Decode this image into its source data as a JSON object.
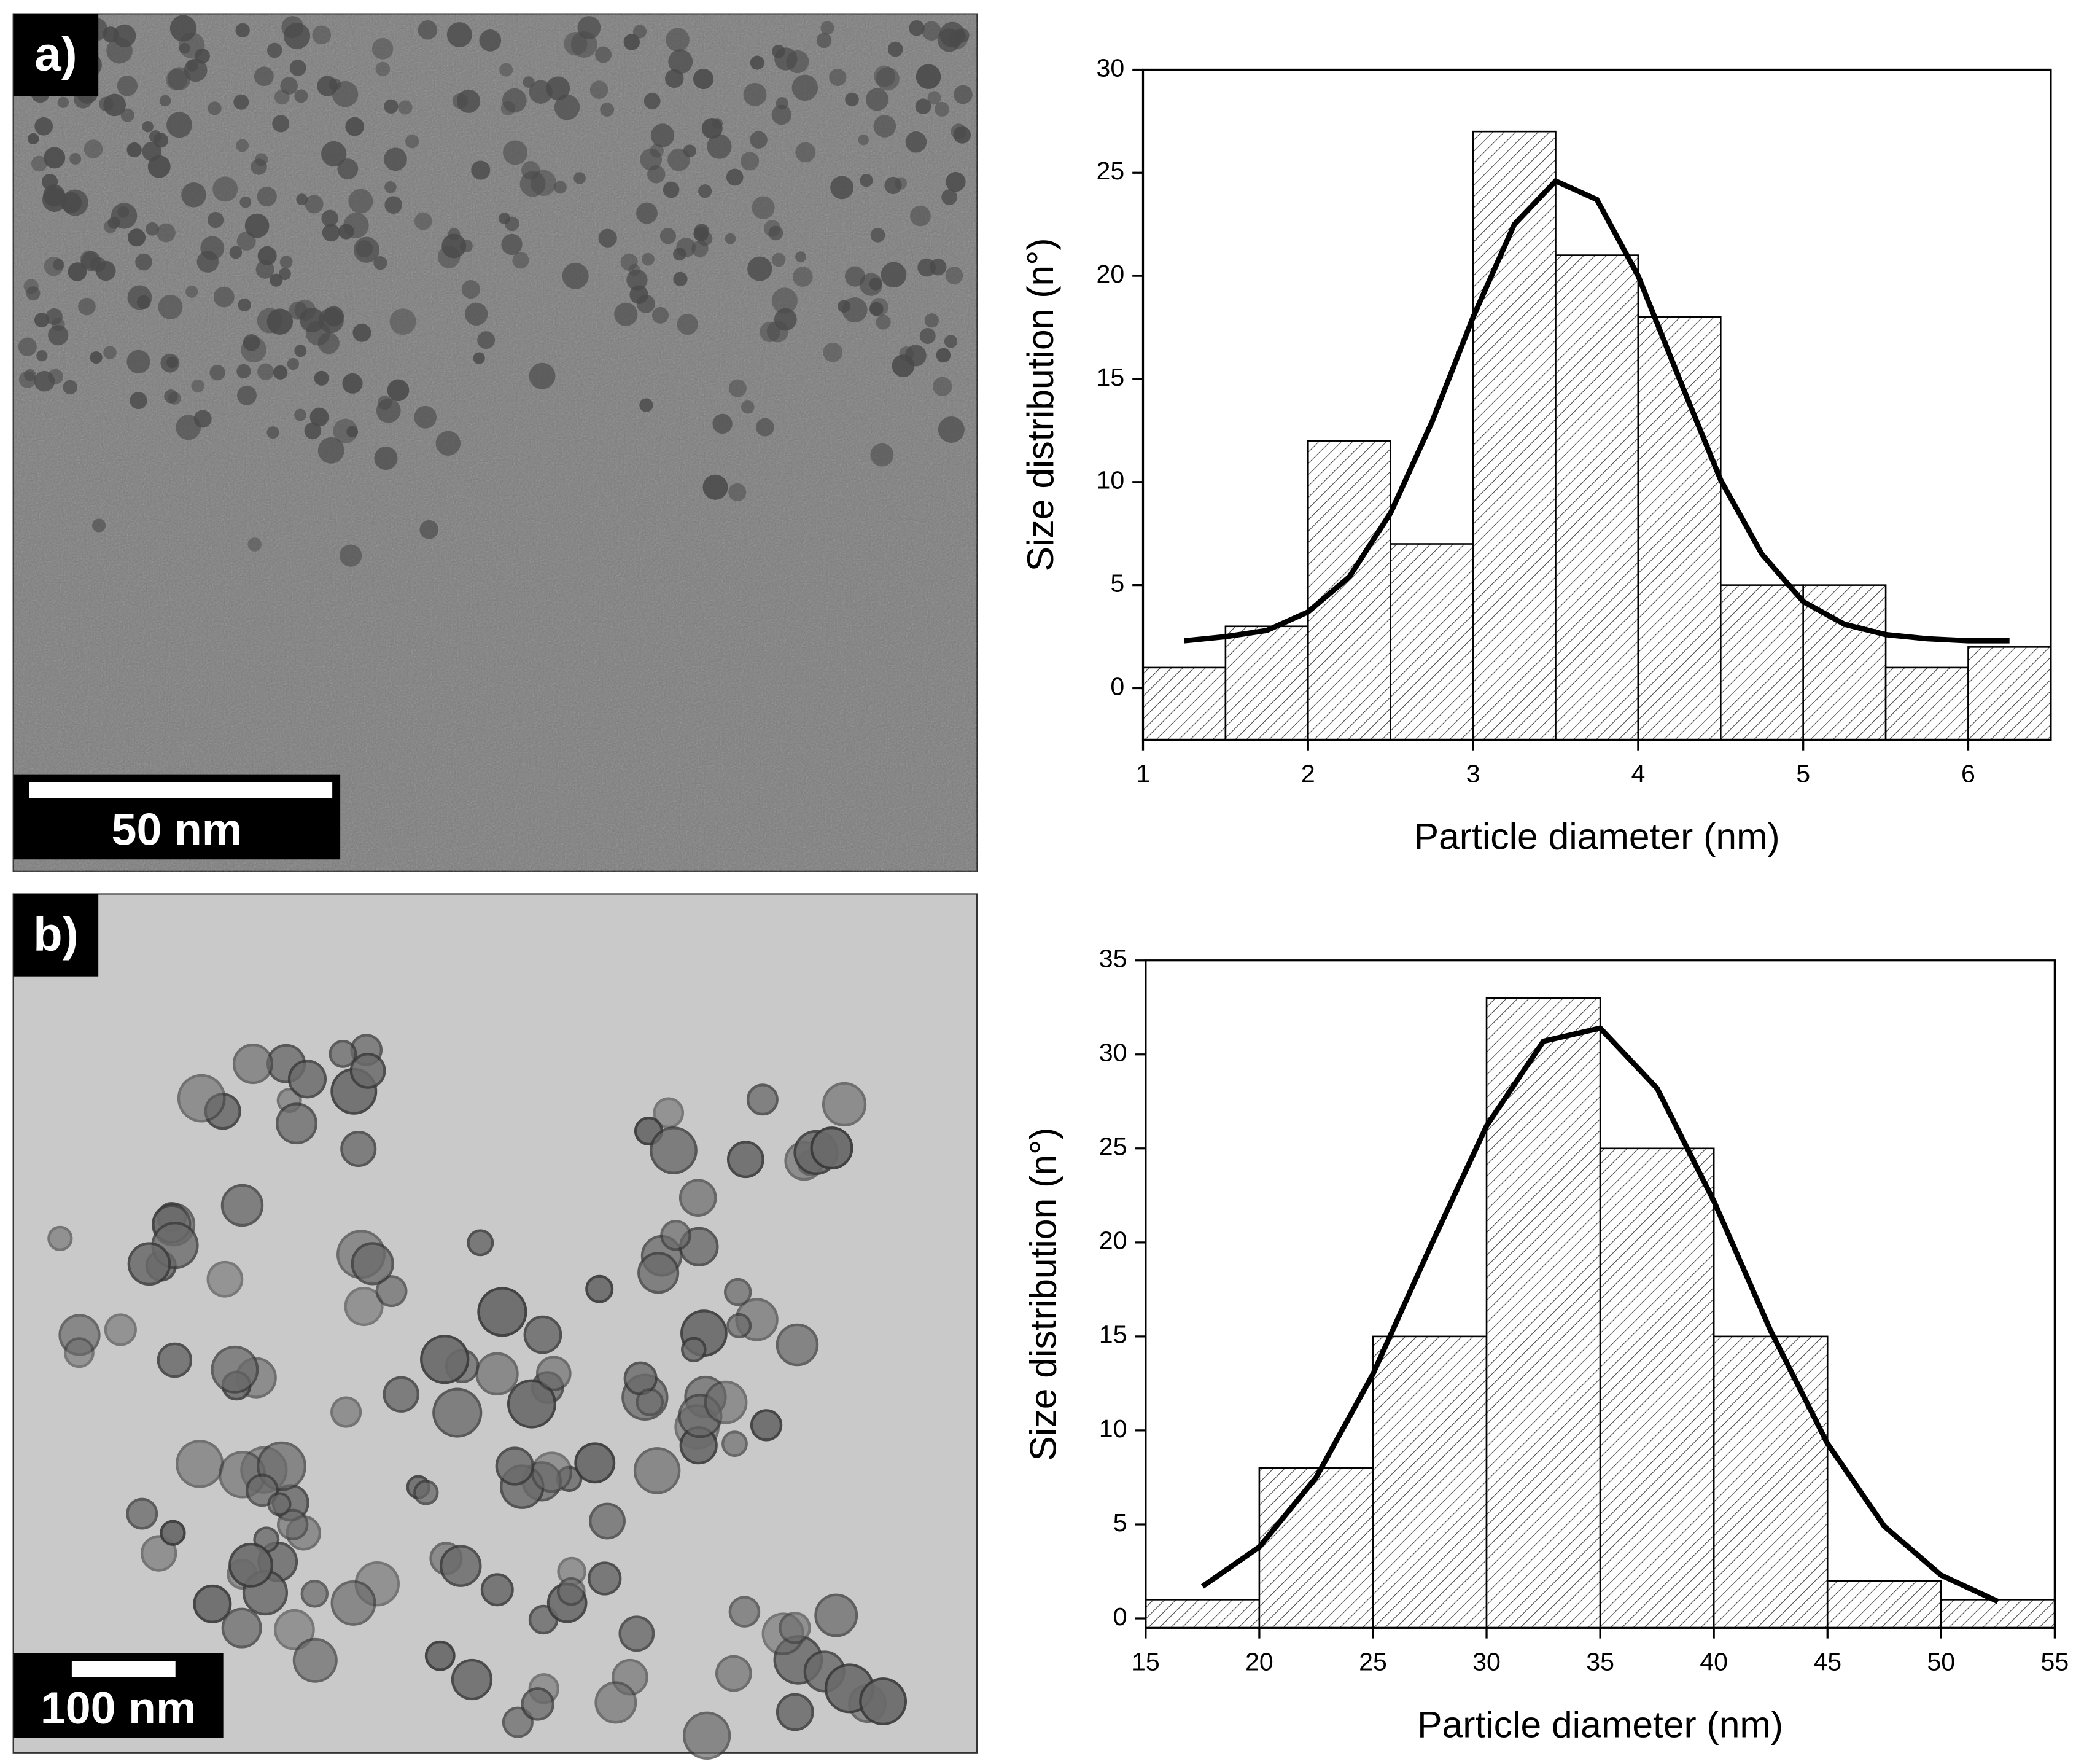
{
  "panels": [
    {
      "label": "a)",
      "scale_bar": "50 nm"
    },
    {
      "label": "b)",
      "scale_bar": "100 nm"
    }
  ],
  "chart_data": [
    {
      "type": "histogram",
      "xlabel": "Particle diameter (nm)",
      "ylabel": "Size distribution (n°)",
      "bins": [
        1,
        1.5,
        2,
        2.5,
        3,
        3.5,
        4,
        4.5,
        5,
        5.5,
        6,
        6.5
      ],
      "counts": [
        1,
        3,
        12,
        7,
        27,
        21,
        18,
        5,
        5,
        1,
        2
      ],
      "fit": {
        "x": [
          1.25,
          1.5,
          1.75,
          2,
          2.25,
          2.5,
          2.75,
          3,
          3.25,
          3.5,
          3.75,
          4,
          4.25,
          4.5,
          4.75,
          5,
          5.25,
          5.5,
          5.75,
          6,
          6.25
        ],
        "values": [
          2.3,
          2.5,
          2.8,
          3.7,
          5.4,
          8.5,
          12.9,
          18.0,
          22.5,
          24.6,
          23.7,
          20.0,
          15.0,
          10.1,
          6.5,
          4.2,
          3.1,
          2.6,
          2.4,
          2.3,
          2.3
        ]
      },
      "xlim": [
        1,
        6.5
      ],
      "xticks": [
        1,
        2,
        3,
        4,
        5,
        6
      ],
      "ylim": [
        -2.5,
        30
      ],
      "yticks": [
        0,
        5,
        10,
        15,
        20,
        25,
        30
      ]
    },
    {
      "type": "histogram",
      "xlabel": "Particle diameter (nm)",
      "ylabel": "Size distribution (n°)",
      "bins": [
        15,
        20,
        25,
        30,
        35,
        40,
        45,
        50,
        55
      ],
      "counts": [
        1,
        8,
        15,
        33,
        25,
        15,
        2,
        1
      ],
      "fit": {
        "x": [
          17.5,
          20,
          22.5,
          25,
          27.5,
          30,
          32.5,
          35,
          37.5,
          40,
          42.5,
          45,
          47.5,
          50,
          52.5
        ],
        "values": [
          1.7,
          3.8,
          7.5,
          13.0,
          19.7,
          26.2,
          30.7,
          31.4,
          28.2,
          22.2,
          15.3,
          9.3,
          4.9,
          2.3,
          0.9
        ]
      },
      "xlim": [
        15,
        55
      ],
      "xticks": [
        15,
        20,
        25,
        30,
        35,
        40,
        45,
        50,
        55
      ],
      "ylim": [
        -0.5,
        35
      ],
      "yticks": [
        0,
        5,
        10,
        15,
        20,
        25,
        30,
        35
      ]
    }
  ]
}
